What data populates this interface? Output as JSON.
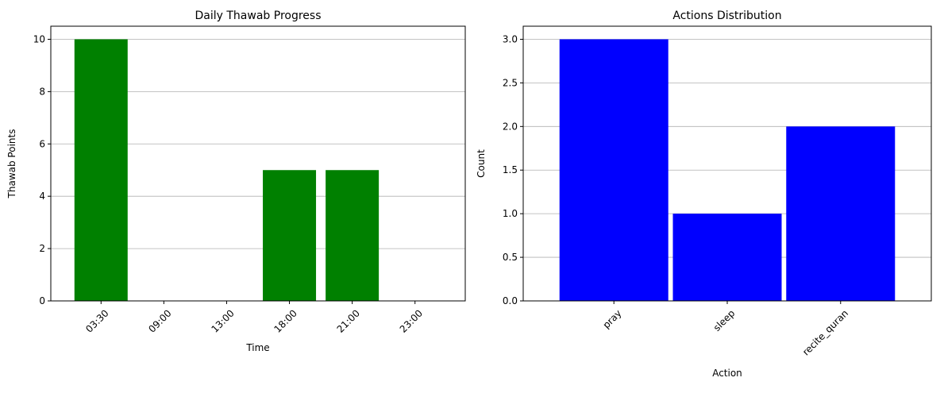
{
  "chart_data": [
    {
      "type": "bar",
      "title": "Daily Thawab Progress",
      "xlabel": "Time",
      "ylabel": "Thawab Points",
      "categories": [
        "03:30",
        "09:00",
        "13:00",
        "18:00",
        "21:00",
        "23:00"
      ],
      "values": [
        10,
        0,
        0,
        5,
        5,
        0
      ],
      "ylim": [
        0,
        10.5
      ],
      "yticks": [
        0,
        2,
        4,
        6,
        8,
        10
      ],
      "grid": "y",
      "legend": "none",
      "color": "#008000"
    },
    {
      "type": "bar",
      "title": "Actions Distribution",
      "xlabel": "Action",
      "ylabel": "Count",
      "categories": [
        "pray",
        "sleep",
        "recite_quran"
      ],
      "values": [
        3,
        1,
        2
      ],
      "ylim": [
        0,
        3.15
      ],
      "yticks": [
        "0.0",
        "0.5",
        "1.0",
        "1.5",
        "2.0",
        "2.5",
        "3.0"
      ],
      "grid": "y",
      "legend": "none",
      "color": "#0000ff"
    }
  ]
}
